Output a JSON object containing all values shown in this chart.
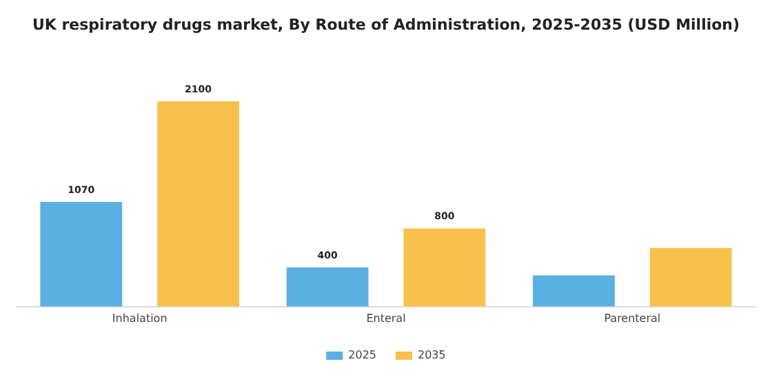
{
  "chart_data": {
    "type": "bar",
    "title": "UK respiratory drugs market, By Route of Administration, 2025-2035 (USD Million)",
    "categories": [
      "Inhalation",
      "Enteral",
      "Parenteral"
    ],
    "series": [
      {
        "name": "2025",
        "color": "#5aafe3",
        "values": [
          1070,
          400,
          320
        ],
        "value_labels": [
          "1070",
          "400",
          null
        ]
      },
      {
        "name": "2035",
        "color": "#f7c14b",
        "values": [
          2100,
          800,
          600
        ],
        "value_labels": [
          "2100",
          "800",
          null
        ]
      }
    ],
    "legend": "bottom",
    "grid": false
  }
}
